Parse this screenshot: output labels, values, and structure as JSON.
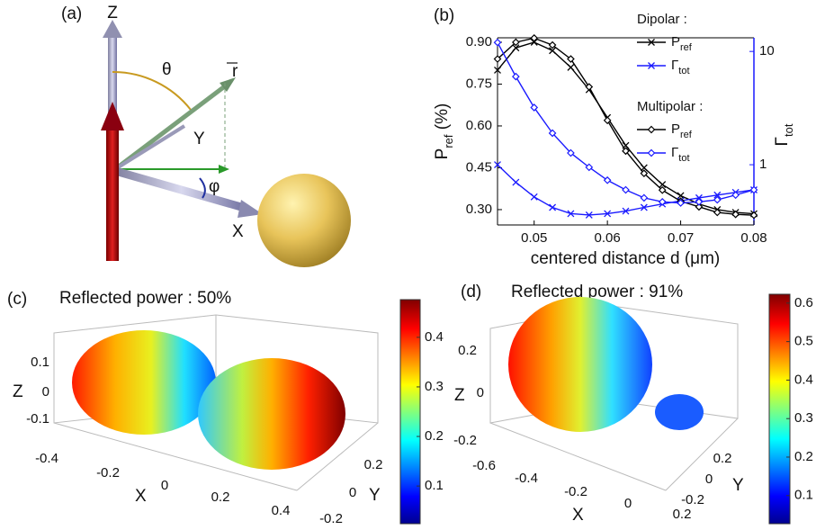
{
  "chart_data": {
    "type": "line",
    "panel_label": "(b)",
    "xlabel": "centered distance d (μm)",
    "ylabel": {
      "text": "P",
      "sub": "ref",
      "suffix": " (%)"
    },
    "y2label": {
      "text": "Γ",
      "sub": "tot"
    },
    "x": [
      0.045,
      0.0475,
      0.05,
      0.0525,
      0.055,
      0.0575,
      0.06,
      0.0625,
      0.065,
      0.0675,
      0.07,
      0.0725,
      0.075,
      0.0775,
      0.08
    ],
    "xlim": [
      0.045,
      0.08
    ],
    "xticks": [
      0.05,
      0.06,
      0.07,
      0.08
    ],
    "ylim": [
      0.245,
      0.916
    ],
    "yticks": [
      {
        "value": 0.3,
        "label": "0.30"
      },
      {
        "value": 0.45,
        "label": "0.45"
      },
      {
        "value": 0.6,
        "label": "0.60"
      },
      {
        "value": 0.75,
        "label": "0.75"
      },
      {
        "value": 0.9,
        "label": "0.90"
      }
    ],
    "y2lim": [
      0.294,
      13.2
    ],
    "y2ticks": [
      1,
      10
    ],
    "y2scale": "log",
    "y2color": "#1a1aff",
    "grid": false,
    "series": [
      {
        "group": "Dipolar :",
        "name": "P",
        "sub": "ref",
        "color": "#000000",
        "marker": "x",
        "values": [
          0.8,
          0.88,
          0.9,
          0.87,
          0.81,
          0.73,
          0.63,
          0.53,
          0.45,
          0.39,
          0.35,
          0.32,
          0.3,
          0.29,
          0.285
        ]
      },
      {
        "group": "Dipolar :",
        "name": "Γ",
        "sub": "tot",
        "color": "#1a1aff",
        "marker": "x",
        "axis": "y2",
        "values": [
          1.0,
          0.7,
          0.52,
          0.42,
          0.37,
          0.36,
          0.37,
          0.39,
          0.42,
          0.45,
          0.48,
          0.51,
          0.54,
          0.57,
          0.6
        ]
      },
      {
        "group": "Multipolar :",
        "name": "P",
        "sub": "ref",
        "color": "#000000",
        "marker": "diamond",
        "values": [
          0.84,
          0.9,
          0.915,
          0.89,
          0.84,
          0.74,
          0.62,
          0.51,
          0.43,
          0.37,
          0.33,
          0.31,
          0.29,
          0.283,
          0.28
        ]
      },
      {
        "group": "Multipolar :",
        "name": "Γ",
        "sub": "tot",
        "color": "#1a1aff",
        "marker": "diamond",
        "axis": "y2",
        "values": [
          12,
          6,
          3.2,
          1.9,
          1.27,
          0.95,
          0.73,
          0.6,
          0.51,
          0.47,
          0.46,
          0.47,
          0.49,
          0.54,
          0.6
        ]
      }
    ]
  },
  "panels": {
    "a": {
      "label": "(a)",
      "axes": [
        "Z",
        "Y",
        "X"
      ],
      "theta": "θ",
      "phi": "φ",
      "r": "r"
    },
    "c": {
      "label": "(c)",
      "title": "Reflected power : 50%",
      "z_label": "Z",
      "x_label": "X",
      "y_label": "Y",
      "z_ticks": [
        0.1,
        0,
        -0.1
      ],
      "x_ticks": [
        -0.4,
        -0.2,
        0,
        0.2,
        0.4
      ],
      "y_ticks": [
        0.2,
        0,
        -0.2
      ],
      "colorbar": {
        "lim": [
          0.024,
          0.476
        ],
        "ticks": [
          0.1,
          0.2,
          0.3,
          0.4
        ]
      }
    },
    "d": {
      "label": "(d)",
      "title": "Reflected power : 91%",
      "z_label": "Z",
      "x_label": "X",
      "y_label": "Y",
      "z_ticks": [
        0.2,
        0,
        -0.2
      ],
      "x_ticks": [
        -0.6,
        -0.4,
        -0.2,
        0,
        0.2
      ],
      "y_ticks": [
        0.2,
        0,
        -0.2
      ],
      "colorbar": {
        "lim": [
          0.027,
          0.623
        ],
        "ticks": [
          0.1,
          0.2,
          0.3,
          0.4,
          0.5,
          0.6
        ]
      }
    }
  }
}
